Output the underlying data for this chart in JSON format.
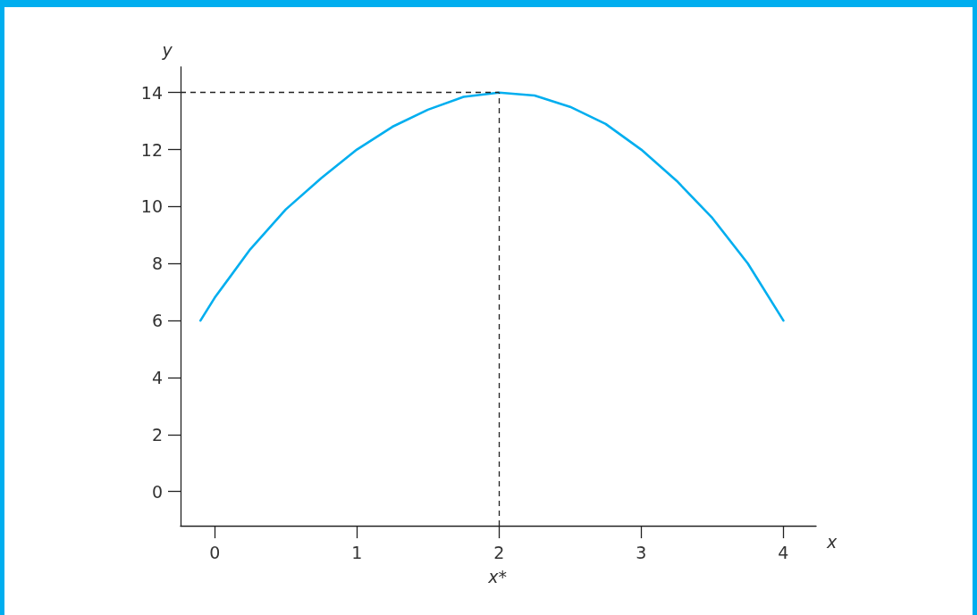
{
  "chart_data": {
    "type": "line",
    "xlabel": "x",
    "ylabel": "y",
    "x": [
      -0.1,
      0,
      0.25,
      0.5,
      0.75,
      1,
      1.25,
      1.5,
      1.75,
      2,
      2.25,
      2.5,
      2.75,
      3,
      3.25,
      3.5,
      3.75,
      4
    ],
    "series": [
      {
        "color": "#00aeef",
        "values": [
          6.0,
          6.8,
          8.5,
          9.9,
          11.0,
          12.0,
          12.8,
          13.4,
          13.85,
          14,
          13.9,
          13.5,
          12.9,
          12.0,
          10.9,
          9.6,
          8.0,
          6.0
        ]
      }
    ],
    "xlim": [
      -0.24,
      4.23
    ],
    "ylim": [
      -1.2,
      14.9
    ],
    "xticks": [
      0,
      1,
      2,
      3,
      4
    ],
    "yticks": [
      0,
      2,
      4,
      6,
      8,
      10,
      12,
      14
    ],
    "ref_lines": [
      {
        "axis": "x",
        "value": 2,
        "line_style": "dashed",
        "color": "#222222"
      },
      {
        "axis": "y",
        "value": 14,
        "line_style": "dashed",
        "color": "#222222"
      }
    ],
    "annotations": [
      "x*"
    ],
    "grid": false,
    "marker": "none",
    "line_style": "solid"
  }
}
